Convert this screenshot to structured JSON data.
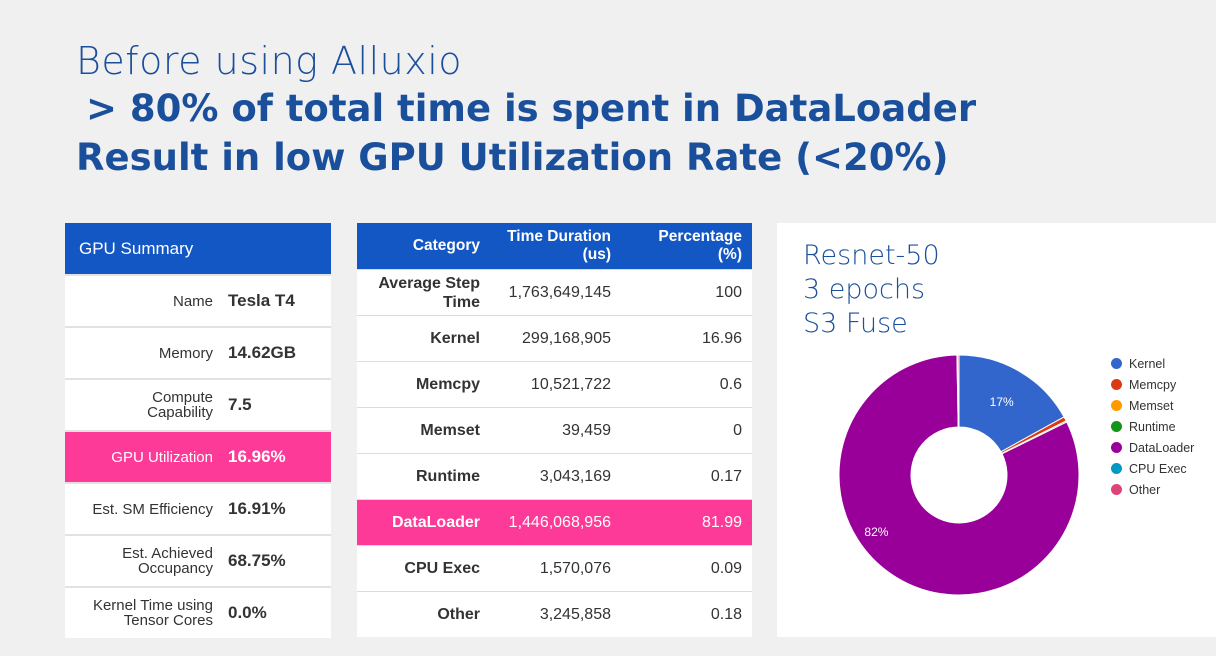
{
  "title": {
    "line1": "Before using Alluxio",
    "line2": "> 80% of total time is spent in DataLoader",
    "line3": "Result in low GPU Utilization Rate (<20%)"
  },
  "gpu_summary": {
    "header": "GPU Summary",
    "rows": [
      {
        "key": "Name",
        "value": "Tesla T4",
        "highlight": false
      },
      {
        "key": "Memory",
        "value": "14.62GB",
        "highlight": false
      },
      {
        "key": "Compute Capability",
        "value": "7.5",
        "highlight": false
      },
      {
        "key": "GPU Utilization",
        "value": "16.96%",
        "highlight": true
      },
      {
        "key": "Est. SM Efficiency",
        "value": "16.91%",
        "highlight": false
      },
      {
        "key": "Est. Achieved Occupancy",
        "value": "68.75%",
        "highlight": false
      },
      {
        "key": "Kernel Time using Tensor Cores",
        "value": "0.0%",
        "highlight": false
      }
    ]
  },
  "category_table": {
    "headers": [
      "Category",
      "Time Duration (us)",
      "Percentage (%)"
    ],
    "rows": [
      {
        "category": "Average Step Time",
        "duration": "1,763,649,145",
        "percentage": "100",
        "highlight": false
      },
      {
        "category": "Kernel",
        "duration": "299,168,905",
        "percentage": "16.96",
        "highlight": false
      },
      {
        "category": "Memcpy",
        "duration": "10,521,722",
        "percentage": "0.6",
        "highlight": false
      },
      {
        "category": "Memset",
        "duration": "39,459",
        "percentage": "0",
        "highlight": false
      },
      {
        "category": "Runtime",
        "duration": "3,043,169",
        "percentage": "0.17",
        "highlight": false
      },
      {
        "category": "DataLoader",
        "duration": "1,446,068,956",
        "percentage": "81.99",
        "highlight": true
      },
      {
        "category": "CPU Exec",
        "duration": "1,570,076",
        "percentage": "0.09",
        "highlight": false
      },
      {
        "category": "Other",
        "duration": "3,245,858",
        "percentage": "0.18",
        "highlight": false
      }
    ]
  },
  "chart_data": {
    "type": "pie",
    "title": "Resnet-50\n3 epochs\nS3 Fuse",
    "donut": true,
    "legend_position": "right",
    "slices": [
      {
        "label": "Kernel",
        "value": 16.96,
        "color": "#3366cc",
        "data_label": "17%"
      },
      {
        "label": "Memcpy",
        "value": 0.6,
        "color": "#dc3912",
        "data_label": ""
      },
      {
        "label": "Memset",
        "value": 0,
        "color": "#ff9900",
        "data_label": ""
      },
      {
        "label": "Runtime",
        "value": 0.17,
        "color": "#109618",
        "data_label": ""
      },
      {
        "label": "DataLoader",
        "value": 81.99,
        "color": "#990099",
        "data_label": "82%"
      },
      {
        "label": "CPU Exec",
        "value": 0.09,
        "color": "#0099c6",
        "data_label": ""
      },
      {
        "label": "Other",
        "value": 0.18,
        "color": "#dd4477",
        "data_label": ""
      }
    ]
  },
  "colors": {
    "accent_blue": "#1357c4",
    "highlight_pink": "#fd3a97",
    "title_blue": "#1a4f9c"
  }
}
